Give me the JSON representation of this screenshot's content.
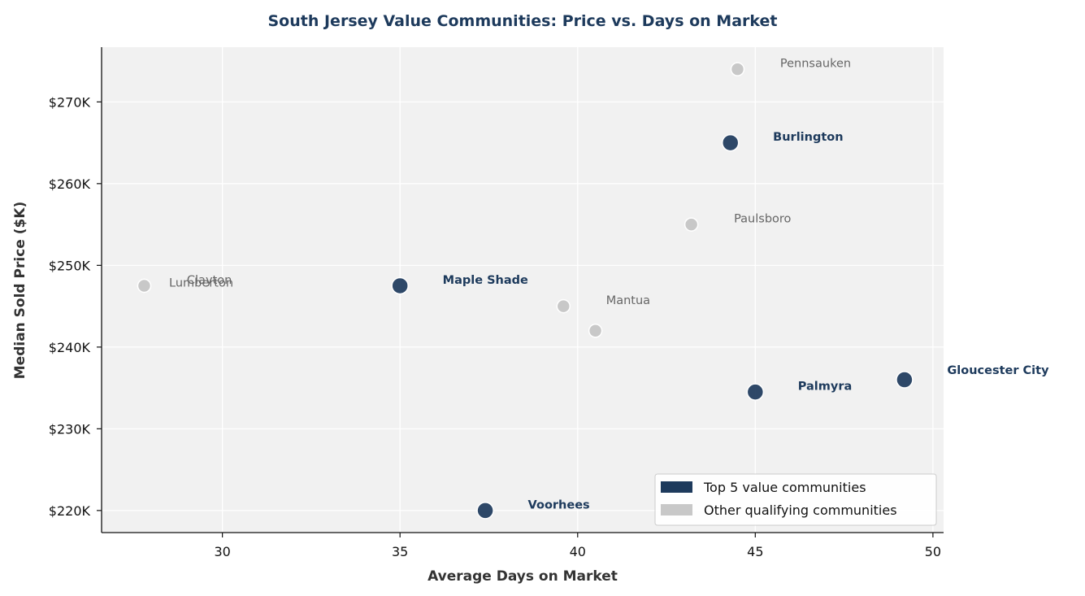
{
  "chart_data": {
    "type": "scatter",
    "title": "South Jersey Value Communities: Price vs. Days on Market",
    "xlabel": "Average Days on Market",
    "ylabel": "Median Sold Price ($K)",
    "xlim": [
      26.6,
      50.3
    ],
    "ylim": [
      217.3,
      276.7
    ],
    "x_ticks": [
      30,
      35,
      40,
      45,
      50
    ],
    "x_tick_labels": [
      "30",
      "35",
      "40",
      "45",
      "50"
    ],
    "y_ticks": [
      220,
      230,
      240,
      250,
      260,
      270
    ],
    "y_tick_labels": [
      "$220K",
      "$230K",
      "$240K",
      "$250K",
      "$260K",
      "$270K"
    ],
    "grid": true,
    "legend_position": "bottom-right",
    "colors": {
      "top": "#1d3a5c",
      "other": "#c8c8c8",
      "background": "#f1f1f1"
    },
    "legend": [
      {
        "label": "Top 5 value communities",
        "group": "top"
      },
      {
        "label": "Other qualifying communities",
        "group": "other"
      }
    ],
    "points": [
      {
        "name": "Pennsauken",
        "x": 44.5,
        "y": 274.0,
        "group": "other",
        "label_dx": 12,
        "label_dy": -2.5
      },
      {
        "name": "Burlington",
        "x": 44.3,
        "y": 265.0,
        "group": "top",
        "label_dx": 12,
        "label_dy": -2.5
      },
      {
        "name": "Paulsboro",
        "x": 43.2,
        "y": 255.0,
        "group": "other",
        "label_dx": 12,
        "label_dy": -2.5
      },
      {
        "name": "Clayton",
        "x": 27.8,
        "y": 247.5,
        "group": "other",
        "label_dx": 12,
        "label_dy": -2.5
      },
      {
        "name": "Lumberton",
        "x": 27.8,
        "y": 247.5,
        "group": "other",
        "label_dx": 7,
        "label_dy": 1.0
      },
      {
        "name": "Maple Shade",
        "x": 35.0,
        "y": 247.5,
        "group": "top",
        "label_dx": 12,
        "label_dy": -2.5
      },
      {
        "name": "Mantua",
        "x": 39.6,
        "y": 245.0,
        "group": "other",
        "label_dx": 12,
        "label_dy": -2.5
      },
      {
        "name": "",
        "x": 40.5,
        "y": 242.0,
        "group": "other",
        "label_dx": 0,
        "label_dy": 0
      },
      {
        "name": "Palmyra",
        "x": 45.0,
        "y": 234.5,
        "group": "top",
        "label_dx": 12,
        "label_dy": -2.5
      },
      {
        "name": "Gloucester City",
        "x": 49.2,
        "y": 236.0,
        "group": "top",
        "label_dx": 12,
        "label_dy": -7.0
      },
      {
        "name": "Voorhees",
        "x": 37.4,
        "y": 220.0,
        "group": "top",
        "label_dx": 12,
        "label_dy": -2.5
      }
    ]
  }
}
